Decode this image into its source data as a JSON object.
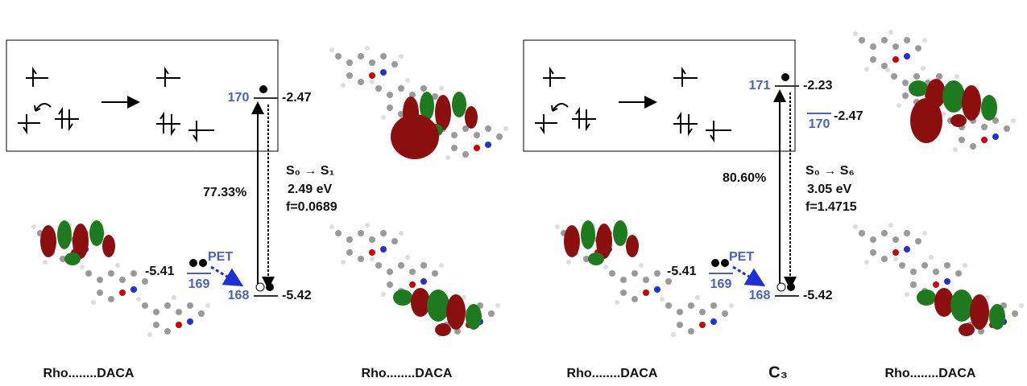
{
  "panels": [
    {
      "upper_level": {
        "label": "170",
        "energy": "-2.47"
      },
      "percentage": "77.33%",
      "transition": "S₀ → S₁",
      "energy_ev": "2.49 eV",
      "oscillator": "f=0.0689",
      "donor_level": {
        "label": "169",
        "energy": "-5.41"
      },
      "pet": "PET",
      "lower_level": {
        "label": "168",
        "energy": "-5.42"
      },
      "captions": [
        "Rho........DACA",
        "Rho........DACA"
      ]
    },
    {
      "upper_level": {
        "label": "171",
        "energy": "-2.23"
      },
      "extra_level": {
        "label": "170",
        "energy": "-2.47"
      },
      "percentage": "80.60%",
      "transition": "S₀ → S₆",
      "energy_ev": "3.05 eV",
      "oscillator": "f=1.4715",
      "donor_level": {
        "label": "169",
        "energy": "-5.41"
      },
      "pet": "PET",
      "lower_level": {
        "label": "168",
        "energy": "-5.42"
      },
      "captions": [
        "Rho........DACA",
        "Rho........DACA"
      ],
      "panel_label": "C₃"
    }
  ]
}
